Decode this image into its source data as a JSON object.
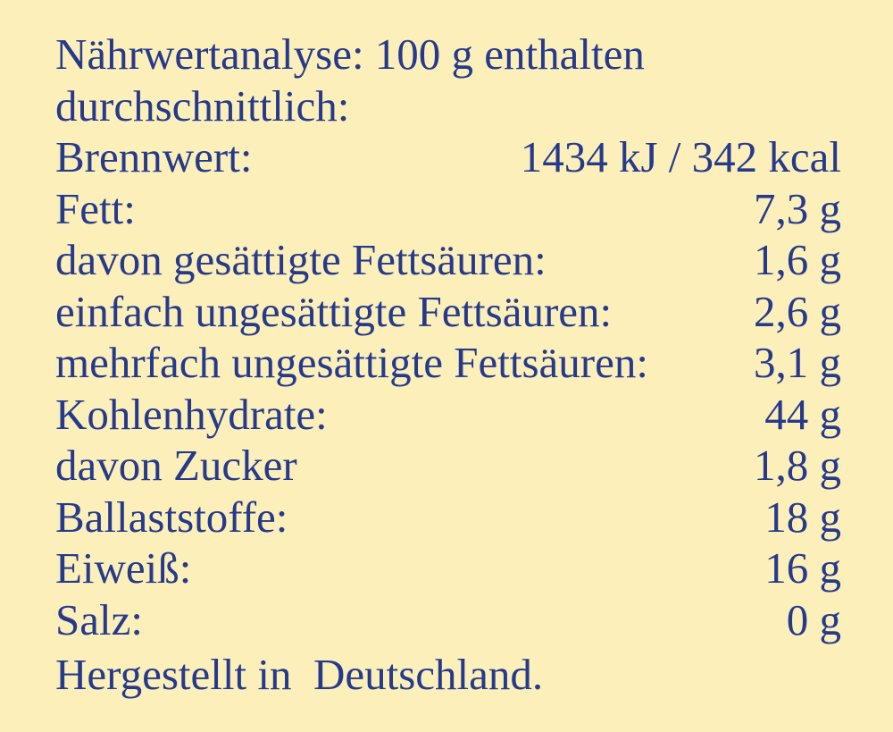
{
  "header": {
    "lines": [
      "Nährwertanalyse: 100 g enthalten",
      "durchschnittlich:"
    ]
  },
  "rows": [
    {
      "label": "Brennwert:",
      "value": "1434 kJ / 342 kcal"
    },
    {
      "label": "Fett:",
      "value": "7,3 g"
    },
    {
      "label": "davon gesättigte Fettsäuren:",
      "value": "1,6 g"
    },
    {
      "label": "einfach ungesättigte Fettsäuren:",
      "value": "2,6 g"
    },
    {
      "label": "mehrfach ungesättigte Fettsäuren:",
      "value": "3,1 g"
    },
    {
      "label": "Kohlenhydrate:",
      "value": "44 g"
    },
    {
      "label": "davon Zucker",
      "value": "1,8 g"
    },
    {
      "label": "Ballaststoffe:",
      "value": "18 g"
    },
    {
      "label": "Eiweiß:",
      "value": "16 g"
    },
    {
      "label": "Salz:",
      "value": "0 g"
    }
  ],
  "footer": "Hergestellt in  Deutschland."
}
